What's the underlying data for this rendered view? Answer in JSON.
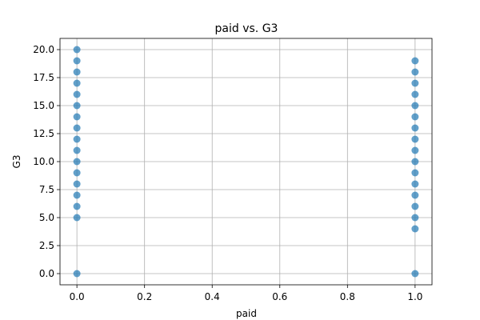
{
  "chart_data": {
    "type": "scatter",
    "title": "paid vs. G3",
    "xlabel": "paid",
    "ylabel": "G3",
    "xlim": [
      -0.05,
      1.05
    ],
    "ylim": [
      -1.0,
      21.0
    ],
    "x_ticks": [
      0.0,
      0.2,
      0.4,
      0.6,
      0.8,
      1.0
    ],
    "x_tick_labels": [
      "0.0",
      "0.2",
      "0.4",
      "0.6",
      "0.8",
      "1.0"
    ],
    "y_ticks": [
      0.0,
      2.5,
      5.0,
      7.5,
      10.0,
      12.5,
      15.0,
      17.5,
      20.0
    ],
    "y_tick_labels": [
      "0.0",
      "2.5",
      "5.0",
      "7.5",
      "10.0",
      "12.5",
      "15.0",
      "17.5",
      "20.0"
    ],
    "grid": true,
    "point_color": "#1f77b4",
    "point_alpha": 0.7,
    "series": [
      {
        "points": [
          {
            "x": 0,
            "y": 0
          },
          {
            "x": 0,
            "y": 5
          },
          {
            "x": 0,
            "y": 6
          },
          {
            "x": 0,
            "y": 7
          },
          {
            "x": 0,
            "y": 8
          },
          {
            "x": 0,
            "y": 9
          },
          {
            "x": 0,
            "y": 10
          },
          {
            "x": 0,
            "y": 11
          },
          {
            "x": 0,
            "y": 12
          },
          {
            "x": 0,
            "y": 13
          },
          {
            "x": 0,
            "y": 14
          },
          {
            "x": 0,
            "y": 15
          },
          {
            "x": 0,
            "y": 16
          },
          {
            "x": 0,
            "y": 17
          },
          {
            "x": 0,
            "y": 18
          },
          {
            "x": 0,
            "y": 19
          },
          {
            "x": 0,
            "y": 20
          },
          {
            "x": 1,
            "y": 0
          },
          {
            "x": 1,
            "y": 4
          },
          {
            "x": 1,
            "y": 5
          },
          {
            "x": 1,
            "y": 6
          },
          {
            "x": 1,
            "y": 7
          },
          {
            "x": 1,
            "y": 8
          },
          {
            "x": 1,
            "y": 9
          },
          {
            "x": 1,
            "y": 10
          },
          {
            "x": 1,
            "y": 11
          },
          {
            "x": 1,
            "y": 12
          },
          {
            "x": 1,
            "y": 13
          },
          {
            "x": 1,
            "y": 14
          },
          {
            "x": 1,
            "y": 15
          },
          {
            "x": 1,
            "y": 16
          },
          {
            "x": 1,
            "y": 17
          },
          {
            "x": 1,
            "y": 18
          },
          {
            "x": 1,
            "y": 19
          }
        ]
      }
    ]
  }
}
